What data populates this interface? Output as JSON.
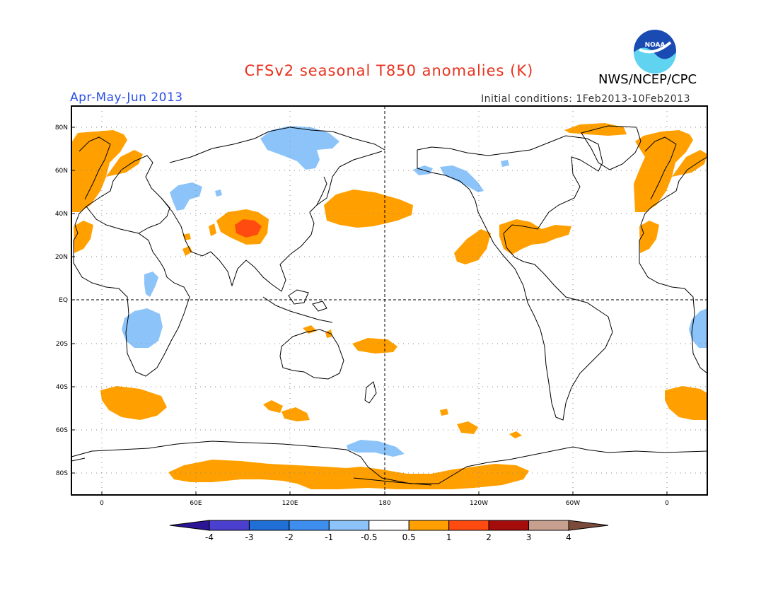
{
  "title": "CFSv2 seasonal T850 anomalies (K)",
  "agency": "NWS/NCEP/CPC",
  "logo_text": "NOAA",
  "period": "Apr-May-Jun 2013",
  "initial_conditions": "Initial conditions: 1Feb2013-10Feb2013",
  "lat_labels": [
    "80N",
    "60N",
    "40N",
    "20N",
    "EQ",
    "20S",
    "40S",
    "60S",
    "80S"
  ],
  "lon_labels": [
    "0",
    "60E",
    "120E",
    "180",
    "120W",
    "60W",
    "0"
  ],
  "colorbar": {
    "labels": [
      "-4",
      "-3",
      "-2",
      "-1",
      "-0.5",
      "0.5",
      "1",
      "2",
      "3",
      "4"
    ],
    "colors": [
      "#2b1596",
      "#4a3fcf",
      "#1f6fd6",
      "#3e8ef0",
      "#8cc4fa",
      "#ffffff",
      "#ffa000",
      "#ff4a10",
      "#a50d0d",
      "#c8a090",
      "#7a4a3a"
    ]
  },
  "colors": {
    "warm_anomaly": "#ffa000",
    "strong_warm_anomaly": "#ff4a10",
    "cool_anomaly": "#8cc4fa",
    "coastline": "#000000"
  }
}
